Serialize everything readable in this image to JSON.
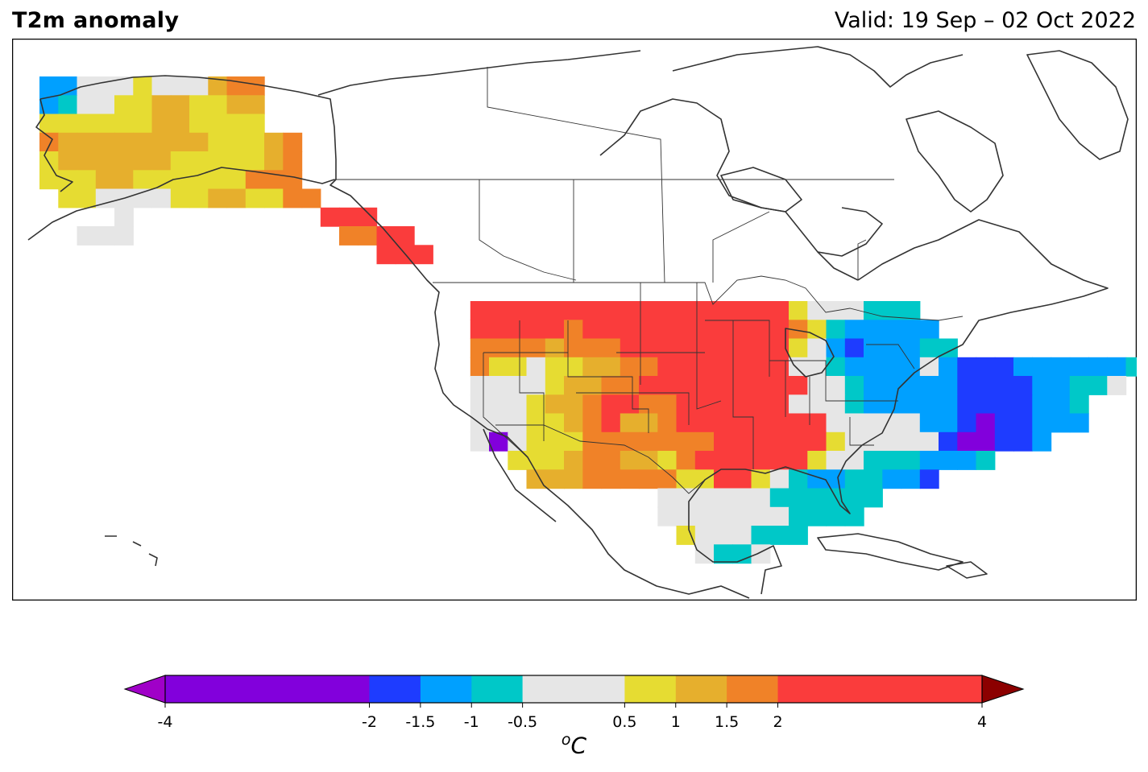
{
  "header": {
    "title": "T2m anomaly",
    "valid": "Valid: 19 Sep – 02 Oct 2022"
  },
  "colorbar": {
    "unit_super": "o",
    "unit_main": "C",
    "ticks": [
      "-4",
      "-2",
      "-1.5",
      "-1",
      "-0.5",
      "0.5",
      "1",
      "1.5",
      "2",
      "4"
    ],
    "tick_values": [
      -4,
      -2,
      -1.5,
      -1,
      -0.5,
      0.5,
      1,
      1.5,
      2,
      4
    ],
    "bins": [
      {
        "from": -4,
        "to": -2,
        "color": "#8200dc"
      },
      {
        "from": -2,
        "to": -1.5,
        "color": "#1e3cff"
      },
      {
        "from": -1.5,
        "to": -1,
        "color": "#00a0ff"
      },
      {
        "from": -1,
        "to": -0.5,
        "color": "#00c8c8"
      },
      {
        "from": -0.5,
        "to": 0.5,
        "color": "#e6e6e6"
      },
      {
        "from": 0.5,
        "to": 1,
        "color": "#e6dc32"
      },
      {
        "from": 1,
        "to": 1.5,
        "color": "#e6af2d"
      },
      {
        "from": 1.5,
        "to": 2,
        "color": "#f08228"
      },
      {
        "from": 2,
        "to": 4,
        "color": "#fa3c3c"
      }
    ],
    "under_color": "#a000c8",
    "over_color": "#8c0000"
  },
  "palette": {
    "P": "#8200dc",
    "B": "#1e3cff",
    "L": "#00a0ff",
    "T": "#00c8c8",
    "G": "#e6e6e6",
    "Y": "#e6dc32",
    "A": "#e6af2d",
    "O": "#f08228",
    "R": "#fa3c3c"
  },
  "anomaly_grid": {
    "origin_col": 2,
    "rows": [
      [
        1,
        0,
        "LLGGGYGGGAOO"
      ],
      [
        2,
        0,
        "LTGGYYAAYYAA"
      ],
      [
        3,
        0,
        "YYYYYYAAYYYY"
      ],
      [
        4,
        0,
        "OAAAAAAAAYYYAO"
      ],
      [
        5,
        0,
        "YAAAAAAYYYYYAO"
      ],
      [
        6,
        0,
        "YYYAAYYYYYYOOO"
      ],
      [
        7,
        1,
        "YYGGGGYYAAYYOO"
      ],
      [
        8,
        4,
        "G"
      ],
      [
        8,
        15,
        "RRR"
      ],
      [
        9,
        2,
        "GGG"
      ],
      [
        9,
        16,
        "OORR"
      ],
      [
        10,
        18,
        "RRR"
      ],
      [
        13,
        23,
        "RRRRRRRRRRRRRRRRRYGGGTTT"
      ],
      [
        14,
        23,
        "RRRRRORRRRRRRRRRROYTLLLLL"
      ],
      [
        15,
        23,
        "OOOOAOOORRRRRRRRRYGLBLLLTT"
      ],
      [
        16,
        23,
        "OYYGYYAAOORRRRRRRGGTLLLLGLBBBLLLLLLTT"
      ],
      [
        17,
        23,
        "GGGGYAAOORRRRRRRRRGGTLLLLLBBBBLLTTG"
      ],
      [
        18,
        23,
        "GGGYAAORROORRRRRRGGGTLLLLLBBBBLLT"
      ],
      [
        19,
        23,
        "GGGYYAORAAORRRRRRRRGGGGGLLBPBBLLL"
      ],
      [
        20,
        23,
        "GPGYYYOOOOOOORRRRRRYGGGGGBPPBBL"
      ],
      [
        21,
        25,
        "YYYAOOAAYORRRRRRYGGTTTLLLT"
      ],
      [
        22,
        26,
        "AAAOOOOOYYRRYGTLLTTLLB"
      ],
      [
        23,
        33,
        "GGGGGGTTTTTT"
      ],
      [
        24,
        33,
        "GGGGGGGTTTT"
      ],
      [
        25,
        34,
        "YGGGTTT"
      ],
      [
        26,
        35,
        "GTTG"
      ]
    ]
  }
}
